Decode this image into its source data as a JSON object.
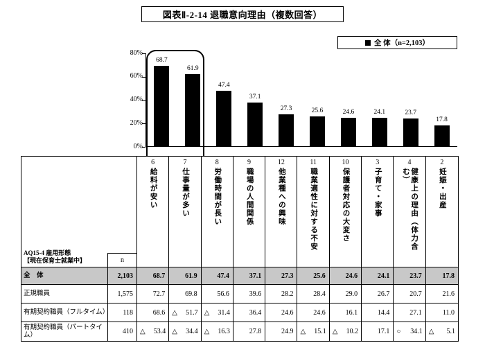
{
  "title": "図表Ⅱ-2-14 退職意向理由（複数回答）",
  "legend": {
    "label": "全 体（n=2,103）"
  },
  "chart_data": {
    "type": "bar",
    "title": "図表Ⅱ-2-14 退職意向理由（複数回答）",
    "legend": [
      "全 体（n=2,103）"
    ],
    "legend_position": "top-right",
    "categories": [
      "6 給料が安い",
      "7 仕事量が多い",
      "8 労働時間が長い",
      "9 職場の人間関係",
      "12 他業種への興味",
      "11 職業適性に対する不安",
      "10 保護者対応の大変さ",
      "3 子育て・家事",
      "4 健康上の理由（体力含む）",
      "2 妊娠・出産"
    ],
    "values": [
      68.7,
      61.9,
      47.4,
      37.1,
      27.3,
      25.6,
      24.6,
      24.1,
      23.7,
      17.8
    ],
    "ylim": [
      0,
      80
    ],
    "ytick_labels": [
      "80%",
      "60%",
      "40%",
      "20%",
      "0%"
    ],
    "grid": false,
    "bar_color": "#000000",
    "annotation": "rounded frame highlighting the top two reasons（給料が安い・仕事量が多い）"
  },
  "table": {
    "corner_label_line1": "AQ15-4 雇用形態",
    "corner_label_line2": "【現在保育士就業中】",
    "n_header": "n",
    "columns": [
      {
        "num": "6",
        "label": "給料が安い"
      },
      {
        "num": "7",
        "label": "仕事量が多い"
      },
      {
        "num": "8",
        "label": "労働時間が長い"
      },
      {
        "num": "9",
        "label": "職場の人間関係"
      },
      {
        "num": "12",
        "label": "他業種への興味"
      },
      {
        "num": "11",
        "label": "職業適性に対する不安"
      },
      {
        "num": "10",
        "label": "保護者対応の大変さ"
      },
      {
        "num": "3",
        "label": "子育て・家事"
      },
      {
        "num": "4",
        "label": "健康上の理由（体力含む）"
      },
      {
        "num": "2",
        "label": "妊娠・出産"
      }
    ],
    "rows": [
      {
        "label": "全　体",
        "n": "2,103",
        "emphasis": true,
        "values": [
          "68.7",
          "61.9",
          "47.4",
          "37.1",
          "27.3",
          "25.6",
          "24.6",
          "24.1",
          "23.7",
          "17.8"
        ]
      },
      {
        "label": "正規職員",
        "n": "1,575",
        "emphasis": false,
        "values": [
          "72.7",
          "69.8",
          "56.6",
          "39.6",
          "28.2",
          "28.4",
          "29.0",
          "26.7",
          "20.7",
          "21.6"
        ]
      },
      {
        "label": "有期契約職員（フルタイム）",
        "n": "118",
        "emphasis": false,
        "values": [
          "68.6",
          "△ 51.7",
          "△ 31.4",
          "36.4",
          "24.6",
          "24.6",
          "16.1",
          "14.4",
          "27.1",
          "11.0"
        ]
      },
      {
        "label": "有期契約職員（パートタイム）",
        "n": "410",
        "emphasis": false,
        "values": [
          "△ 53.4",
          "△ 34.4",
          "△ 16.3",
          "27.8",
          "24.9",
          "△ 15.1",
          "△ 10.2",
          "17.1",
          "○ 34.1",
          "△ 5.1"
        ]
      }
    ]
  }
}
